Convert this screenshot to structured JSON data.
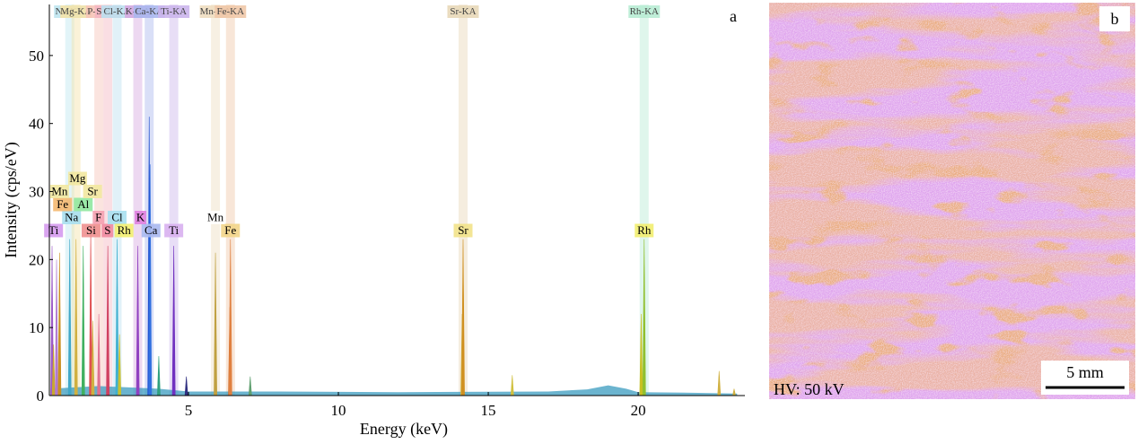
{
  "chart_data": {
    "type": "spectrum",
    "panel_label": "a",
    "x_label": "Energy (keV)",
    "y_label": "Intensity (cps/eV)",
    "xlim": [
      0.36,
      23.56
    ],
    "ylim": [
      0,
      57.5
    ],
    "xticks": [
      5,
      10,
      15,
      20
    ],
    "yticks": [
      0,
      10,
      20,
      30,
      40,
      50
    ],
    "peaks": {
      "x": [
        0.45,
        0.5,
        0.6,
        0.7,
        1.04,
        1.25,
        1.49,
        1.74,
        1.81,
        2.01,
        2.31,
        2.62,
        2.7,
        3.31,
        3.69,
        3.72,
        4.01,
        4.51,
        4.93,
        5.9,
        6.38,
        6.4,
        7.06,
        14.13,
        14.16,
        15.8,
        20.1,
        20.2,
        22.7,
        23.2
      ],
      "values": [
        22,
        7.5,
        20,
        21,
        23,
        23,
        22,
        24,
        11,
        12,
        22,
        23,
        9,
        22,
        41,
        34,
        5.8,
        22,
        2.8,
        21,
        13,
        23,
        2.8,
        12,
        23,
        3,
        12,
        23,
        3.6,
        1
      ],
      "colors": [
        "#9b59c6",
        "#c8a830",
        "#b07ad0",
        "#c89020",
        "#40a8c8",
        "#d0b040",
        "#40b060",
        "#e05050",
        "#d0b040",
        "#e07090",
        "#d04060",
        "#40b0d0",
        "#c8c030",
        "#9040c0",
        "#2050d0",
        "#3070e0",
        "#30a080",
        "#7030c0",
        "#303080",
        "#c0a040",
        "#d07030",
        "#e08040",
        "#60a070",
        "#d0b040",
        "#d09020",
        "#d0c040",
        "#c8c020",
        "#90c030",
        "#d0b040",
        "#d0b040"
      ]
    },
    "background": {
      "x": [
        0.4,
        2,
        4,
        5,
        8,
        12,
        17,
        18.3,
        19,
        19.6,
        20,
        22,
        23.3
      ],
      "values": [
        1,
        1.4,
        1,
        0.6,
        0.6,
        0.5,
        0.6,
        0.9,
        1.5,
        1,
        0.5,
        0.4,
        0.3
      ],
      "color": "#3a9bbf"
    },
    "lines": [
      {
        "label": "Na-KA",
        "energy": 1.04,
        "color": "#bfe6ef"
      },
      {
        "label": "Mg-KA",
        "energy": 1.25,
        "color": "#f4e3a8"
      },
      {
        "label": "P-KA",
        "energy": 2.01,
        "color": "#f6c4b8"
      },
      {
        "label": "S-KA",
        "energy": 2.31,
        "color": "#f4b6c2"
      },
      {
        "label": "Cl-KA",
        "energy": 2.62,
        "color": "#bde0ef"
      },
      {
        "label": "K-KA",
        "energy": 3.31,
        "color": "#d8a8e0"
      },
      {
        "label": "Ca-KA",
        "energy": 3.69,
        "color": "#aab8ee"
      },
      {
        "label": "Ti-KA",
        "energy": 4.51,
        "color": "#cbb5ec"
      },
      {
        "label": "Mn-KA",
        "energy": 5.9,
        "color": "#eeddc0"
      },
      {
        "label": "Fe-KA",
        "energy": 6.4,
        "color": "#f0c8a8"
      },
      {
        "label": "Sr-KA",
        "energy": 14.16,
        "color": "#e8d8b8"
      },
      {
        "label": "Rh-KA",
        "energy": 20.2,
        "color": "#b8ecd4"
      }
    ],
    "element_labels": [
      {
        "label": "Ti",
        "energy": 0.5,
        "color": "#d59aee"
      },
      {
        "label": "Na",
        "energy": 1.1,
        "color": "#a8dff0"
      },
      {
        "label": "Si",
        "energy": 1.75,
        "color": "#f09090"
      },
      {
        "label": "S",
        "energy": 2.3,
        "color": "#f08aa0"
      },
      {
        "label": "Ca",
        "energy": 3.75,
        "color": "#a8b8f0"
      },
      {
        "label": "Ti",
        "energy": 4.51,
        "color": "#d8b0f0"
      },
      {
        "label": "Fe",
        "energy": 6.4,
        "color": "#f2d58a"
      },
      {
        "label": "Sr",
        "energy": 14.16,
        "color": "#f2e28a"
      },
      {
        "label": "Rh",
        "energy": 20.2,
        "color": "#f2ee70"
      },
      {
        "label": "Fe",
        "energy": 0.8,
        "color": "#f4b870"
      },
      {
        "label": "Al",
        "energy": 1.49,
        "color": "#90e8a0"
      },
      {
        "label": "F",
        "energy": 2.0,
        "color": "#f4a0b0"
      },
      {
        "label": "K",
        "energy": 3.4,
        "color": "#e080e0"
      },
      {
        "label": "Mn",
        "energy": 5.9,
        "color": "#ffffff"
      },
      {
        "label": "Mn",
        "energy": 0.7,
        "color": "#f2e8a0"
      },
      {
        "label": "Mg",
        "energy": 1.3,
        "color": "#f2e8a0"
      },
      {
        "label": "Cl",
        "energy": 2.62,
        "color": "#a8e0f0"
      },
      {
        "label": "Rh",
        "energy": 2.85,
        "color": "#f2ee70"
      },
      {
        "label": "Sr",
        "energy": 1.8,
        "color": "#f2e8a0"
      }
    ]
  },
  "map": {
    "panel_label": "b",
    "hv": "HV: 50 kV",
    "scale": "5 mm"
  }
}
